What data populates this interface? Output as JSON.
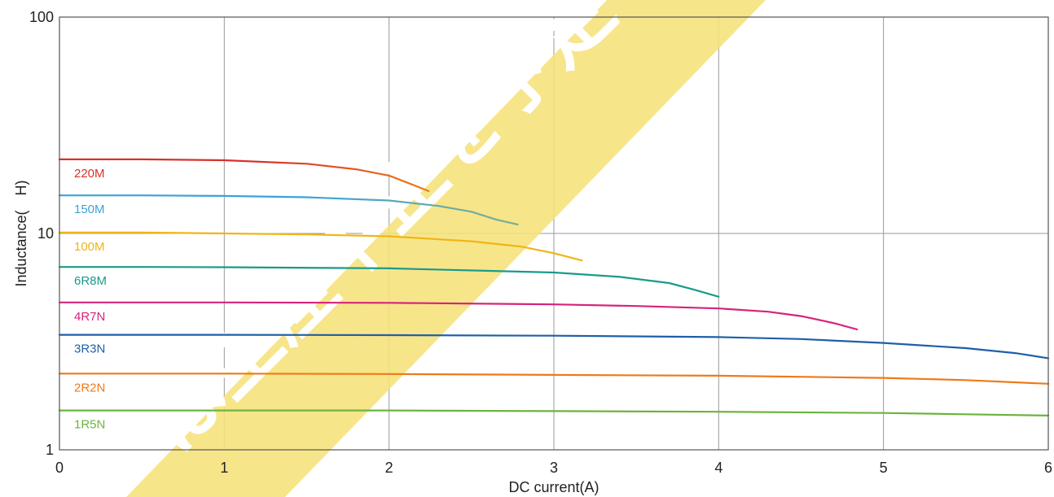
{
  "chart_data": {
    "type": "line",
    "xlabel": "DC current(A)",
    "ylabel": "Inductance(　H)",
    "xlim": [
      0,
      6
    ],
    "ylim": [
      1,
      100
    ],
    "y_scale": "log",
    "grid": true,
    "x_ticks": [
      "0",
      "1",
      "2",
      "3",
      "4",
      "5",
      "6"
    ],
    "y_ticks": [
      "1",
      "10",
      "100"
    ],
    "watermark": "は生産中止を予定",
    "series": [
      {
        "name": "220M",
        "color": "#d7312b",
        "color_end": "#ee7a1a",
        "x": [
          0,
          0.5,
          1,
          1.5,
          1.8,
          2.0,
          2.1,
          2.24
        ],
        "y": [
          22,
          22,
          21.8,
          21,
          19.8,
          18.5,
          17.3,
          15.7
        ]
      },
      {
        "name": "150M",
        "color": "#3aa3d8",
        "color_end": "#7faf8e",
        "x": [
          0,
          0.5,
          1,
          1.5,
          2.0,
          2.3,
          2.5,
          2.65,
          2.78
        ],
        "y": [
          15,
          15,
          14.9,
          14.7,
          14.2,
          13.4,
          12.6,
          11.6,
          11.0
        ]
      },
      {
        "name": "100M",
        "color": "#f0b516",
        "color_end": "#f0b516",
        "x": [
          0,
          0.5,
          1,
          1.5,
          2.0,
          2.5,
          2.8,
          3.0,
          3.17
        ],
        "y": [
          10.1,
          10.1,
          10.0,
          9.9,
          9.7,
          9.2,
          8.7,
          8.1,
          7.5
        ]
      },
      {
        "name": "6R8M",
        "color": "#1a9a8a",
        "color_end": "#1a9a8a",
        "x": [
          0,
          0.5,
          1,
          2,
          3,
          3.4,
          3.7,
          3.85,
          4.0
        ],
        "y": [
          7.0,
          7.0,
          6.98,
          6.9,
          6.6,
          6.3,
          5.9,
          5.5,
          5.1
        ]
      },
      {
        "name": "4R7N",
        "color": "#d6237b",
        "color_end": "#d6237b",
        "x": [
          0,
          1,
          2,
          3,
          3.5,
          4.0,
          4.3,
          4.5,
          4.7,
          4.84
        ],
        "y": [
          4.8,
          4.8,
          4.78,
          4.7,
          4.62,
          4.5,
          4.35,
          4.15,
          3.85,
          3.6
        ]
      },
      {
        "name": "3R3N",
        "color": "#1f5fa8",
        "color_end": "#1f5fa8",
        "x": [
          0,
          1,
          2,
          3,
          4,
          4.5,
          5.0,
          5.5,
          5.8,
          6.0
        ],
        "y": [
          3.4,
          3.4,
          3.39,
          3.37,
          3.32,
          3.25,
          3.12,
          2.95,
          2.8,
          2.65
        ]
      },
      {
        "name": "2R2N",
        "color": "#ee7a1a",
        "color_end": "#ee7a1a",
        "x": [
          0,
          1,
          2,
          3,
          4,
          5,
          5.5,
          6.0
        ],
        "y": [
          2.25,
          2.25,
          2.24,
          2.22,
          2.2,
          2.15,
          2.1,
          2.02
        ]
      },
      {
        "name": "1R5N",
        "color": "#6db33f",
        "color_end": "#6db33f",
        "x": [
          0,
          1,
          2,
          3,
          4,
          5,
          5.5,
          6.0
        ],
        "y": [
          1.52,
          1.52,
          1.52,
          1.51,
          1.5,
          1.48,
          1.46,
          1.44
        ]
      }
    ]
  }
}
